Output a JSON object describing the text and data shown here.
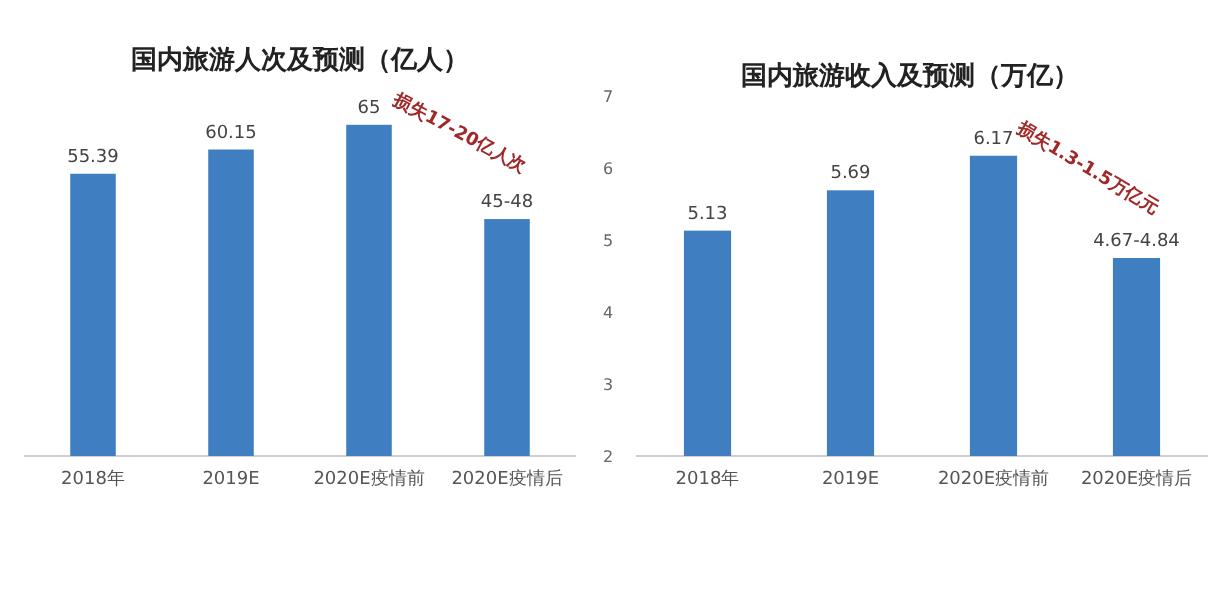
{
  "chart_data": [
    {
      "type": "bar",
      "title": "国内旅游人次及预测（亿人）",
      "categories": [
        "2018年",
        "2019E",
        "2020E疫情前",
        "2020E疫情后"
      ],
      "values": [
        55.39,
        60.15,
        65,
        46.5
      ],
      "value_labels": [
        "55.39",
        "60.15",
        "65",
        "45-48"
      ],
      "color": "#3f7fc1",
      "annotations": [
        "损失17-20亿人次"
      ],
      "grid": false
    },
    {
      "type": "bar",
      "title": "国内旅游收入及预测（万亿）",
      "categories": [
        "2018年",
        "2019E",
        "2020E疫情前",
        "2020E疫情后"
      ],
      "values": [
        5.13,
        5.69,
        6.17,
        4.75
      ],
      "value_labels": [
        "5.13",
        "5.69",
        "6.17",
        "4.67-4.84"
      ],
      "color": "#3f7fc1",
      "ylim": [
        2,
        7
      ],
      "yticks": [
        2,
        3,
        4,
        5,
        6,
        7
      ],
      "annotations": [
        "损失1.3-1.5万亿元"
      ],
      "grid": false
    }
  ]
}
